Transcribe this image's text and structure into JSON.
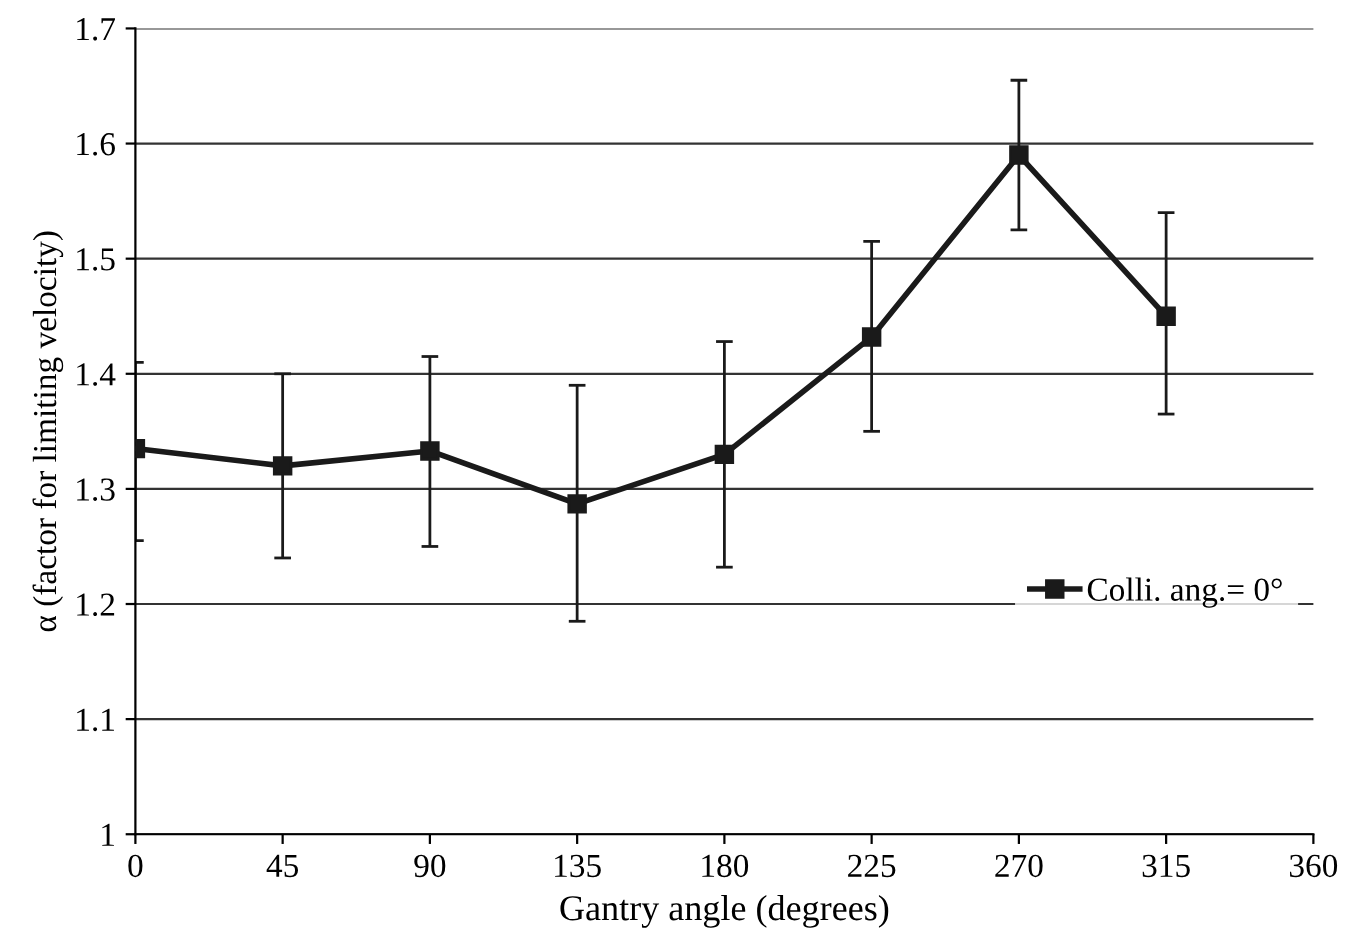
{
  "chart_data": {
    "type": "line",
    "xlabel": "Gantry angle (degrees)",
    "ylabel": "α (factor for limiting velocity)",
    "x": [
      0,
      45,
      90,
      135,
      180,
      225,
      270,
      315
    ],
    "series": [
      {
        "name": "Colli. ang.= 0°",
        "color": "#1a1a1a",
        "values": [
          1.335,
          1.32,
          1.333,
          1.287,
          1.33,
          1.432,
          1.59,
          1.45
        ],
        "errors": [
          [
            1.255,
            1.41
          ],
          [
            1.24,
            1.4
          ],
          [
            1.25,
            1.415
          ],
          [
            1.185,
            1.39
          ],
          [
            1.232,
            1.428
          ],
          [
            1.35,
            1.515
          ],
          [
            1.525,
            1.655
          ],
          [
            1.365,
            1.54
          ]
        ]
      }
    ],
    "xlim": [
      0,
      360
    ],
    "xticks": [
      0,
      45,
      90,
      135,
      180,
      225,
      270,
      315,
      360
    ],
    "ylim": [
      1,
      1.7
    ],
    "yticks": [
      1,
      1.1,
      1.2,
      1.3,
      1.4,
      1.5,
      1.6,
      1.7
    ],
    "grid": "y",
    "legend": "right",
    "marker": "square",
    "line_style": "solid"
  }
}
